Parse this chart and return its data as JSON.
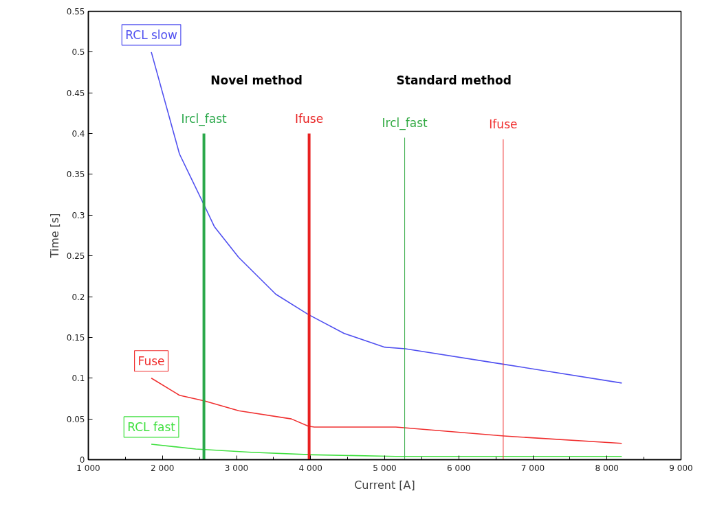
{
  "chart_data": {
    "type": "line",
    "xlabel": "Current [A]",
    "ylabel": "Time [s]",
    "xlim": [
      1000,
      9000
    ],
    "ylim": [
      0,
      0.55
    ],
    "xticks": [
      {
        "value": 1000,
        "label": "1 000"
      },
      {
        "value": 2000,
        "label": "2 000"
      },
      {
        "value": 3000,
        "label": "3 000"
      },
      {
        "value": 4000,
        "label": "4 000"
      },
      {
        "value": 5000,
        "label": "5 000"
      },
      {
        "value": 6000,
        "label": "6 000"
      },
      {
        "value": 7000,
        "label": "7 000"
      },
      {
        "value": 8000,
        "label": "8 000"
      },
      {
        "value": 9000,
        "label": "9 000"
      }
    ],
    "yticks": [
      0,
      0.05,
      0.1,
      0.15,
      0.2,
      0.25,
      0.3,
      0.35,
      0.4,
      0.45,
      0.5,
      0.55
    ],
    "grid": false,
    "marker": "none",
    "line_style": "solid",
    "series": [
      {
        "name": "RCL slow",
        "color": "#5050f0",
        "x": [
          1850,
          2230,
          2570,
          2700,
          3030,
          3530,
          3970,
          4450,
          5000,
          5280,
          6610,
          8200
        ],
        "values": [
          0.5,
          0.375,
          0.311,
          0.286,
          0.248,
          0.203,
          0.178,
          0.155,
          0.138,
          0.136,
          0.117,
          0.094
        ]
      },
      {
        "name": "Fuse",
        "color": "#f03030",
        "x": [
          1850,
          2230,
          2570,
          3030,
          3740,
          3970,
          4050,
          5150,
          6610,
          8200
        ],
        "values": [
          0.1,
          0.079,
          0.072,
          0.06,
          0.05,
          0.041,
          0.04,
          0.04,
          0.029,
          0.02
        ]
      },
      {
        "name": "RCL fast",
        "color": "#40e040",
        "x": [
          1850,
          2450,
          3200,
          4030,
          5150,
          8200
        ],
        "values": [
          0.019,
          0.013,
          0.009,
          0.006,
          0.004,
          0.004
        ]
      },
      {
        "name": "Ircl_fast",
        "color": "#2aa84a",
        "x": [
          2560,
          2560
        ],
        "values": [
          0,
          0.4
        ]
      },
      {
        "name": "Ifuse",
        "color": "#e82020",
        "x": [
          3980,
          3980
        ],
        "values": [
          0,
          0.4
        ]
      },
      {
        "name": "Ircl_fast",
        "color": "#33aa44",
        "x": [
          5270,
          5270
        ],
        "values": [
          0,
          0.395
        ]
      },
      {
        "name": "Ifuse",
        "color": "#f03030",
        "x": [
          6600,
          6600
        ],
        "values": [
          0,
          0.393
        ]
      }
    ],
    "annotations": [
      "Novel method",
      "Standard method"
    ]
  }
}
